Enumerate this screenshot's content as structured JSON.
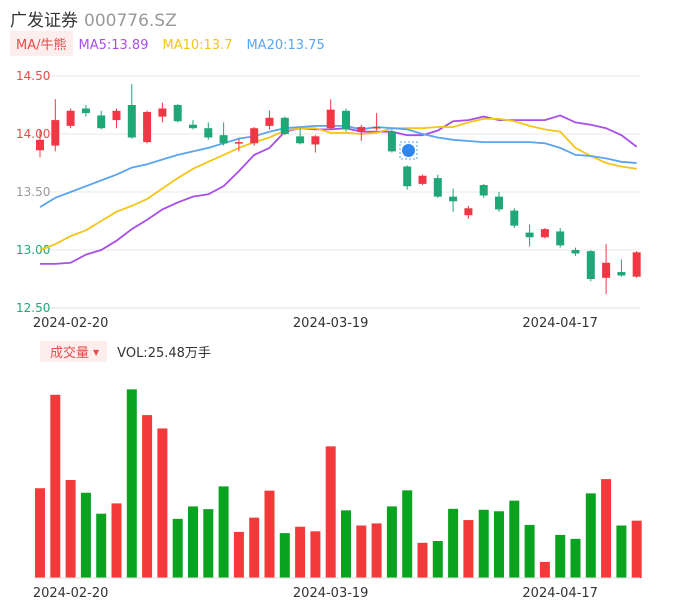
{
  "header": {
    "name": "广发证券",
    "code": "000776.SZ"
  },
  "ma_bar": {
    "button": "MA/牛熊",
    "items": [
      {
        "label": "MA5:13.89",
        "color": "#a94ee8"
      },
      {
        "label": "MA10:13.7",
        "color": "#f5c518"
      },
      {
        "label": "MA20:13.75",
        "color": "#5ba4f0"
      }
    ]
  },
  "volume_bar": {
    "button": "成交量",
    "text": "VOL:25.48万手"
  },
  "colors": {
    "up": "#f23645",
    "down": "#1fa777",
    "vol_up": "#f23a3a",
    "vol_down": "#0aa31f"
  },
  "chart_data": [
    {
      "type": "candlestick",
      "y_ticks": [
        "14.50",
        "14.00",
        "13.50",
        "13.00",
        "12.50"
      ],
      "y_tick_colors": [
        "#e84a4a",
        "#e84a4a",
        "#999999",
        "#1fa777",
        "#1fa777"
      ],
      "ylim": [
        12.5,
        14.5
      ],
      "x_tick_labels": [
        {
          "label": "2024-02-20",
          "index": 2
        },
        {
          "label": "2024-03-19",
          "index": 19
        },
        {
          "label": "2024-04-17",
          "index": 34
        }
      ],
      "candles": [
        {
          "o": 13.86,
          "c": 13.95,
          "h": 14.03,
          "l": 13.8
        },
        {
          "o": 13.9,
          "c": 14.12,
          "h": 14.3,
          "l": 13.85
        },
        {
          "o": 14.07,
          "c": 14.2,
          "h": 14.22,
          "l": 14.05
        },
        {
          "o": 14.22,
          "c": 14.18,
          "h": 14.25,
          "l": 14.15
        },
        {
          "o": 14.16,
          "c": 14.05,
          "h": 14.2,
          "l": 14.04
        },
        {
          "o": 14.12,
          "c": 14.2,
          "h": 14.22,
          "l": 14.05
        },
        {
          "o": 14.25,
          "c": 13.97,
          "h": 14.43,
          "l": 13.96
        },
        {
          "o": 13.93,
          "c": 14.19,
          "h": 14.2,
          "l": 13.92
        },
        {
          "o": 14.15,
          "c": 14.22,
          "h": 14.27,
          "l": 14.1
        },
        {
          "o": 14.25,
          "c": 14.11,
          "h": 14.26,
          "l": 14.1
        },
        {
          "o": 14.08,
          "c": 14.05,
          "h": 14.12,
          "l": 14.04
        },
        {
          "o": 14.05,
          "c": 13.97,
          "h": 14.1,
          "l": 13.95
        },
        {
          "o": 13.99,
          "c": 13.92,
          "h": 14.1,
          "l": 13.9
        },
        {
          "o": 13.92,
          "c": 13.93,
          "h": 13.96,
          "l": 13.85
        },
        {
          "o": 13.92,
          "c": 14.05,
          "h": 14.06,
          "l": 13.9
        },
        {
          "o": 14.07,
          "c": 14.14,
          "h": 14.2,
          "l": 14.04
        },
        {
          "o": 14.14,
          "c": 14.0,
          "h": 14.15,
          "l": 13.99
        },
        {
          "o": 13.98,
          "c": 13.92,
          "h": 14.05,
          "l": 13.91
        },
        {
          "o": 13.91,
          "c": 13.98,
          "h": 13.99,
          "l": 13.84
        },
        {
          "o": 14.05,
          "c": 14.21,
          "h": 14.3,
          "l": 14.04
        },
        {
          "o": 14.2,
          "c": 14.04,
          "h": 14.22,
          "l": 14.02
        },
        {
          "o": 14.02,
          "c": 14.06,
          "h": 14.08,
          "l": 13.94
        },
        {
          "o": 14.05,
          "c": 14.06,
          "h": 14.18,
          "l": 14.03
        },
        {
          "o": 14.02,
          "c": 13.85,
          "h": 14.04,
          "l": 13.84
        },
        {
          "o": 13.72,
          "c": 13.55,
          "h": 13.73,
          "l": 13.52
        },
        {
          "o": 13.57,
          "c": 13.64,
          "h": 13.65,
          "l": 13.56
        },
        {
          "o": 13.62,
          "c": 13.46,
          "h": 13.65,
          "l": 13.45
        },
        {
          "o": 13.46,
          "c": 13.42,
          "h": 13.53,
          "l": 13.33
        },
        {
          "o": 13.3,
          "c": 13.36,
          "h": 13.38,
          "l": 13.27
        },
        {
          "o": 13.56,
          "c": 13.47,
          "h": 13.57,
          "l": 13.45
        },
        {
          "o": 13.46,
          "c": 13.35,
          "h": 13.5,
          "l": 13.33
        },
        {
          "o": 13.34,
          "c": 13.21,
          "h": 13.36,
          "l": 13.19
        },
        {
          "o": 13.15,
          "c": 13.11,
          "h": 13.22,
          "l": 13.03
        },
        {
          "o": 13.11,
          "c": 13.18,
          "h": 13.19,
          "l": 13.1
        },
        {
          "o": 13.16,
          "c": 13.04,
          "h": 13.19,
          "l": 13.02
        },
        {
          "o": 13.0,
          "c": 12.97,
          "h": 13.02,
          "l": 12.95
        },
        {
          "o": 12.99,
          "c": 12.75,
          "h": 13.0,
          "l": 12.73
        },
        {
          "o": 12.76,
          "c": 12.89,
          "h": 13.05,
          "l": 12.62
        },
        {
          "o": 12.81,
          "c": 12.78,
          "h": 12.92,
          "l": 12.77
        },
        {
          "o": 12.77,
          "c": 12.98,
          "h": 12.99,
          "l": 12.76
        }
      ],
      "ma_lines": [
        {
          "name": "MA5",
          "color": "#a94ee8",
          "points": [
            [
              0,
              12.88
            ],
            [
              1,
              12.88
            ],
            [
              2,
              12.89
            ],
            [
              3,
              12.96
            ],
            [
              4,
              13.0
            ],
            [
              5,
              13.08
            ],
            [
              6,
              13.18
            ],
            [
              7,
              13.26
            ],
            [
              8,
              13.35
            ],
            [
              9,
              13.41
            ],
            [
              10,
              13.46
            ],
            [
              11,
              13.48
            ],
            [
              12,
              13.55
            ],
            [
              13,
              13.68
            ],
            [
              14,
              13.82
            ],
            [
              15,
              13.88
            ],
            [
              16,
              14.02
            ],
            [
              17,
              14.05
            ],
            [
              18,
              14.04
            ],
            [
              19,
              14.04
            ],
            [
              20,
              14.05
            ],
            [
              21,
              14.02
            ],
            [
              22,
              14.02
            ],
            [
              23,
              14.02
            ],
            [
              24,
              13.99
            ],
            [
              25,
              13.99
            ],
            [
              26,
              14.03
            ],
            [
              27,
              14.11
            ],
            [
              28,
              14.12
            ],
            [
              29,
              14.15
            ],
            [
              30,
              14.12
            ],
            [
              31,
              14.12
            ],
            [
              32,
              14.12
            ],
            [
              33,
              14.12
            ],
            [
              34,
              14.16
            ],
            [
              35,
              14.1
            ],
            [
              36,
              14.08
            ],
            [
              37,
              14.05
            ],
            [
              38,
              13.99
            ],
            [
              39,
              13.89
            ]
          ]
        },
        {
          "name": "MA10",
          "color": "#f5c518",
          "points": [
            [
              0,
              13.0
            ],
            [
              1,
              13.05
            ],
            [
              2,
              13.12
            ],
            [
              3,
              13.17
            ],
            [
              4,
              13.25
            ],
            [
              5,
              13.33
            ],
            [
              6,
              13.38
            ],
            [
              7,
              13.44
            ],
            [
              8,
              13.53
            ],
            [
              9,
              13.62
            ],
            [
              10,
              13.7
            ],
            [
              11,
              13.76
            ],
            [
              12,
              13.82
            ],
            [
              13,
              13.88
            ],
            [
              14,
              13.93
            ],
            [
              15,
              13.97
            ],
            [
              16,
              14.03
            ],
            [
              17,
              14.05
            ],
            [
              18,
              14.05
            ],
            [
              19,
              14.01
            ],
            [
              20,
              14.01
            ],
            [
              21,
              14.0
            ],
            [
              22,
              14.01
            ],
            [
              23,
              14.05
            ],
            [
              24,
              14.05
            ],
            [
              25,
              14.05
            ],
            [
              26,
              14.06
            ],
            [
              27,
              14.06
            ],
            [
              28,
              14.1
            ],
            [
              29,
              14.13
            ],
            [
              30,
              14.13
            ],
            [
              31,
              14.11
            ],
            [
              32,
              14.07
            ],
            [
              33,
              14.04
            ],
            [
              34,
              14.02
            ],
            [
              35,
              13.88
            ],
            [
              36,
              13.81
            ],
            [
              37,
              13.75
            ],
            [
              38,
              13.72
            ],
            [
              39,
              13.7
            ]
          ]
        },
        {
          "name": "MA20",
          "color": "#5ba4f0",
          "points": [
            [
              0,
              13.37
            ],
            [
              1,
              13.45
            ],
            [
              2,
              13.5
            ],
            [
              3,
              13.55
            ],
            [
              4,
              13.6
            ],
            [
              5,
              13.65
            ],
            [
              6,
              13.71
            ],
            [
              7,
              13.74
            ],
            [
              8,
              13.78
            ],
            [
              9,
              13.82
            ],
            [
              10,
              13.85
            ],
            [
              11,
              13.88
            ],
            [
              12,
              13.92
            ],
            [
              13,
              13.96
            ],
            [
              14,
              13.98
            ],
            [
              15,
              14.02
            ],
            [
              16,
              14.05
            ],
            [
              17,
              14.06
            ],
            [
              18,
              14.07
            ],
            [
              19,
              14.07
            ],
            [
              20,
              14.07
            ],
            [
              21,
              14.04
            ],
            [
              22,
              14.06
            ],
            [
              23,
              14.05
            ],
            [
              24,
              14.04
            ],
            [
              25,
              14.0
            ],
            [
              26,
              13.97
            ],
            [
              27,
              13.95
            ],
            [
              28,
              13.94
            ],
            [
              29,
              13.93
            ],
            [
              30,
              13.93
            ],
            [
              31,
              13.93
            ],
            [
              32,
              13.93
            ],
            [
              33,
              13.92
            ],
            [
              34,
              13.88
            ],
            [
              35,
              13.82
            ],
            [
              36,
              13.81
            ],
            [
              37,
              13.79
            ],
            [
              38,
              13.76
            ],
            [
              39,
              13.75
            ]
          ]
        }
      ]
    },
    {
      "type": "bar",
      "name": "volume",
      "x_tick_labels": [
        {
          "label": "2024-02-20",
          "index": 2
        },
        {
          "label": "2024-03-19",
          "index": 19
        },
        {
          "label": "2024-04-17",
          "index": 34
        }
      ],
      "ylim": [
        0,
        60
      ],
      "values": [
        29.6,
        60.4,
        32.3,
        28.1,
        21.2,
        24.6,
        62.2,
        53.7,
        49.3,
        19.5,
        23.6,
        22.7,
        30.2,
        15.2,
        19.9,
        28.8,
        14.8,
        16.9,
        15.4,
        43.4,
        22.3,
        17.3,
        18.0,
        23.6,
        28.9,
        11.6,
        12.2,
        22.8,
        19.1,
        22.5,
        22.0,
        25.5,
        17.5,
        5.3,
        14.2,
        12.9,
        27.9,
        32.6,
        17.3,
        18.9
      ],
      "up": [
        1,
        1,
        1,
        0,
        0,
        1,
        0,
        1,
        1,
        0,
        0,
        0,
        0,
        1,
        1,
        1,
        0,
        1,
        1,
        1,
        0,
        1,
        1,
        0,
        0,
        1,
        0,
        0,
        1,
        0,
        0,
        0,
        0,
        1,
        0,
        0,
        0,
        1,
        0,
        1
      ]
    }
  ]
}
